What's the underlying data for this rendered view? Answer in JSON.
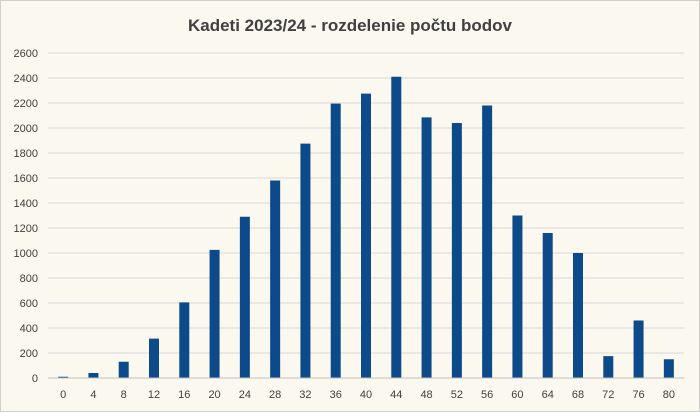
{
  "chart_data": {
    "type": "bar",
    "title": "Kadeti 2023/24 - rozdelenie počtu bodov",
    "xlabel": "",
    "ylabel": "",
    "categories": [
      "0",
      "4",
      "8",
      "12",
      "16",
      "20",
      "24",
      "28",
      "32",
      "36",
      "40",
      "44",
      "48",
      "52",
      "56",
      "60",
      "64",
      "68",
      "72",
      "76",
      "80"
    ],
    "values": [
      10,
      40,
      130,
      315,
      605,
      1025,
      1290,
      1580,
      1875,
      2195,
      2275,
      2410,
      2085,
      2040,
      2180,
      1300,
      1160,
      1000,
      175,
      460,
      150
    ],
    "ylim": [
      0,
      2600
    ],
    "yticks": [
      0,
      200,
      400,
      600,
      800,
      1000,
      1200,
      1400,
      1600,
      1800,
      2000,
      2200,
      2400,
      2600
    ],
    "grid": true,
    "legend": "none",
    "colors": {
      "background": "#fbf8ef",
      "bar": "#0d4a8a",
      "grid": "#d9d9d9",
      "text": "#404040",
      "title": "#404040",
      "border": "#d0d0d0"
    }
  }
}
